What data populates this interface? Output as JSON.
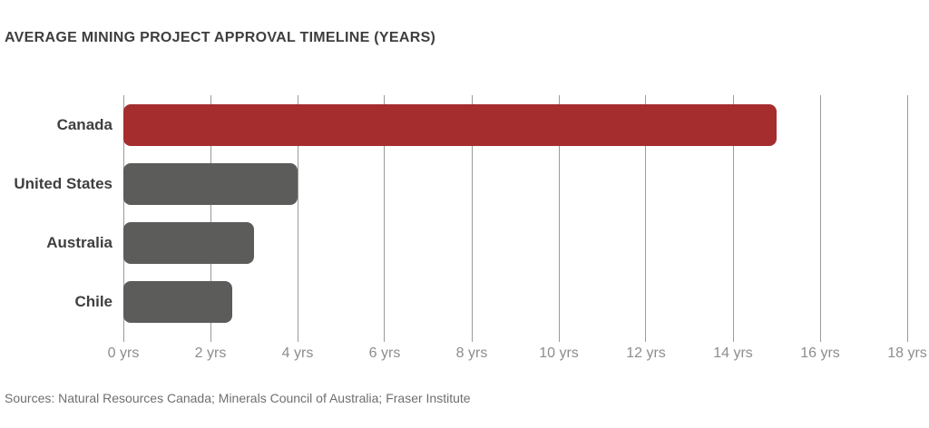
{
  "title": "AVERAGE MINING PROJECT APPROVAL TIMELINE (YEARS)",
  "source_note": "Sources: Natural Resources Canada; Minerals Council of Australia; Fraser Institute",
  "colors": {
    "highlight_red": "#A52D2D",
    "bar_gray": "#5C5C5A",
    "title_text": "#3E3E3E",
    "category_text": "#3F3F3F",
    "tick_text": "#8D8D8D",
    "gridline": "#9A9A9A",
    "source_text": "#6F6F6F",
    "background": "#FFFFFF"
  },
  "chart_data": {
    "type": "bar",
    "orientation": "horizontal",
    "title": "AVERAGE MINING PROJECT APPROVAL TIMELINE (YEARS)",
    "categories": [
      "Canada",
      "United States",
      "Australia",
      "Chile"
    ],
    "values": [
      15,
      4,
      3,
      2.5
    ],
    "unit": "yrs",
    "bar_colors": [
      "#A52D2D",
      "#5C5C5A",
      "#5C5C5A",
      "#5C5C5A"
    ],
    "highlight_category": "Canada",
    "xlabel": "",
    "ylabel": "",
    "xlim": [
      0,
      18
    ],
    "x_ticks": [
      0,
      2,
      4,
      6,
      8,
      10,
      12,
      14,
      16,
      18
    ],
    "x_tick_labels": [
      "0 yrs",
      "2 yrs",
      "4 yrs",
      "6 yrs",
      "8 yrs",
      "10 yrs",
      "12 yrs",
      "14 yrs",
      "16 yrs",
      "18 yrs"
    ],
    "grid": true,
    "legend": false
  }
}
